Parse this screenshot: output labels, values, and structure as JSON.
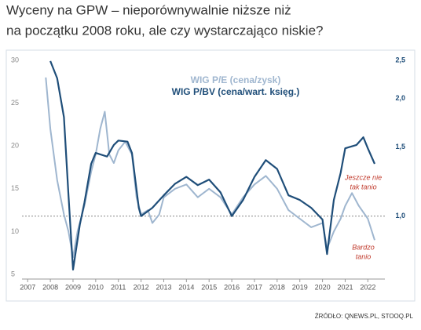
{
  "chart_data": {
    "type": "line",
    "title": [
      "Wyceny na GPW – nieporównywalnie niższe niż",
      "na początku 2008 roku, ale czy wystarczająco niskie?"
    ],
    "source": "ŹRÓDŁO: QNEWS.PL, STOOQ.PL",
    "series": [
      {
        "name": "WIG P/E (cena/zysk)",
        "color": "#9fb6cf",
        "x": [
          2007.8,
          2008.0,
          2008.3,
          2008.6,
          2008.8,
          2009.0,
          2009.2,
          2009.5,
          2009.8,
          2010.0,
          2010.2,
          2010.4,
          2010.6,
          2010.8,
          2011.0,
          2011.3,
          2011.6,
          2011.8,
          2012.0,
          2012.3,
          2012.5,
          2012.8,
          2013.0,
          2013.5,
          2014.0,
          2014.5,
          2015.0,
          2015.5,
          2016.0,
          2016.5,
          2017.0,
          2017.5,
          2018.0,
          2018.5,
          2019.0,
          2019.5,
          2020.0,
          2020.2,
          2020.5,
          2020.8,
          2021.0,
          2021.3,
          2021.6,
          2022.0,
          2022.3
        ],
        "values": [
          28,
          22,
          16,
          12,
          10,
          7,
          10,
          13,
          17,
          19,
          22,
          24,
          19,
          18,
          19.5,
          20.5,
          19,
          14,
          12,
          12.5,
          11,
          12,
          14,
          15,
          15.5,
          14,
          15,
          14,
          12,
          14,
          15.5,
          16.5,
          15,
          12.5,
          11.5,
          10.5,
          11,
          8,
          10,
          11.5,
          13,
          14.5,
          13,
          11.5,
          9
        ]
      },
      {
        "name": "WIG P/BV (cena/wart. księg.)",
        "color": "#1f4e79",
        "axis": "y2",
        "x": [
          2008.0,
          2008.3,
          2008.6,
          2008.8,
          2009.0,
          2009.3,
          2009.5,
          2009.8,
          2010.0,
          2010.5,
          2010.8,
          2011.0,
          2011.4,
          2011.6,
          2011.9,
          2012.0,
          2012.5,
          2013.0,
          2013.5,
          2014.0,
          2014.5,
          2015.0,
          2015.5,
          2016.0,
          2016.5,
          2017.0,
          2017.5,
          2018.0,
          2018.5,
          2019.0,
          2019.5,
          2020.0,
          2020.2,
          2020.5,
          2020.8,
          2021.0,
          2021.5,
          2021.8,
          2022.0,
          2022.3
        ],
        "values": [
          2.49,
          2.25,
          1.79,
          1.13,
          0.73,
          0.95,
          1.08,
          1.36,
          1.45,
          1.42,
          1.52,
          1.56,
          1.55,
          1.45,
          1.05,
          1.0,
          1.05,
          1.13,
          1.21,
          1.26,
          1.2,
          1.24,
          1.15,
          1.0,
          1.1,
          1.26,
          1.39,
          1.32,
          1.13,
          1.1,
          1.05,
          0.98,
          0.8,
          1.1,
          1.29,
          1.49,
          1.52,
          1.59,
          1.49,
          1.36
        ]
      }
    ],
    "xlim": [
      2006.75,
      2022.75
    ],
    "xticks": [
      2007,
      2008,
      2009,
      2010,
      2011,
      2012,
      2013,
      2014,
      2015,
      2016,
      2017,
      2018,
      2019,
      2020,
      2021,
      2022
    ],
    "ylim": [
      5,
      30
    ],
    "yticks": [
      5,
      10,
      15,
      20,
      25,
      30
    ],
    "y2lim": [
      0.71,
      2.5
    ],
    "y2log": true,
    "y2ticks": [
      {
        "value": 1,
        "label": "1,0"
      },
      {
        "value": 1.5,
        "label": "1,5"
      },
      {
        "value": 2,
        "label": "2,0"
      },
      {
        "value": 2.5,
        "label": "2,5"
      }
    ],
    "hline_y2": 1,
    "annotations": [
      {
        "text": [
          "Jeszcze nie",
          "tak tanio"
        ],
        "x": 2021.8,
        "y": 1.25,
        "color": "#c0392b"
      },
      {
        "text": [
          "Bardzo",
          "tanio"
        ],
        "x": 2021.8,
        "y": 0.83,
        "color": "#c0392b"
      }
    ]
  }
}
